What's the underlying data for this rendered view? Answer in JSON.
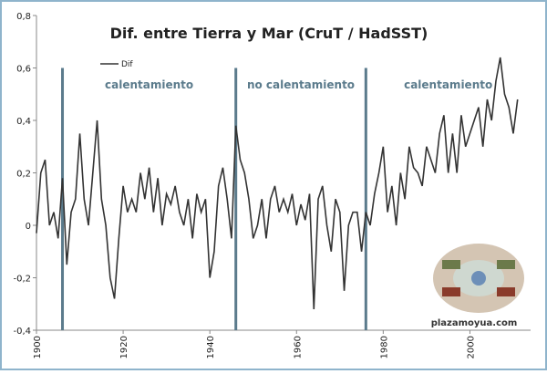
{
  "chart_data": {
    "type": "line",
    "title": "Dif. entre Tierra y Mar (CruT / HadSST)",
    "x": [
      1900,
      1901,
      1902,
      1903,
      1904,
      1905,
      1906,
      1907,
      1908,
      1909,
      1910,
      1911,
      1912,
      1913,
      1914,
      1915,
      1916,
      1917,
      1918,
      1919,
      1920,
      1921,
      1922,
      1923,
      1924,
      1925,
      1926,
      1927,
      1928,
      1929,
      1930,
      1931,
      1932,
      1933,
      1934,
      1935,
      1936,
      1937,
      1938,
      1939,
      1940,
      1941,
      1942,
      1943,
      1944,
      1945,
      1946,
      1947,
      1948,
      1949,
      1950,
      1951,
      1952,
      1953,
      1954,
      1955,
      1956,
      1957,
      1958,
      1959,
      1960,
      1961,
      1962,
      1963,
      1964,
      1965,
      1966,
      1967,
      1968,
      1969,
      1970,
      1971,
      1972,
      1973,
      1974,
      1975,
      1976,
      1977,
      1978,
      1979,
      1980,
      1981,
      1982,
      1983,
      1984,
      1985,
      1986,
      1987,
      1988,
      1989,
      1990,
      1991,
      1992,
      1993,
      1994,
      1995,
      1996,
      1997,
      1998,
      1999,
      2000,
      2001,
      2002,
      2003,
      2004,
      2005,
      2006,
      2007,
      2008,
      2009,
      2010,
      2011
    ],
    "series": [
      {
        "name": "Dif",
        "color": "#333333",
        "values": [
          -0.03,
          0.2,
          0.25,
          0.0,
          0.05,
          -0.05,
          0.18,
          -0.15,
          0.05,
          0.1,
          0.35,
          0.1,
          0.0,
          0.2,
          0.4,
          0.1,
          0.0,
          -0.2,
          -0.28,
          -0.05,
          0.15,
          0.05,
          0.1,
          0.05,
          0.2,
          0.1,
          0.22,
          0.05,
          0.18,
          0.0,
          0.12,
          0.08,
          0.15,
          0.05,
          0.0,
          0.1,
          -0.05,
          0.12,
          0.05,
          0.1,
          -0.2,
          -0.1,
          0.15,
          0.22,
          0.1,
          -0.05,
          0.38,
          0.25,
          0.2,
          0.1,
          -0.05,
          0.0,
          0.1,
          -0.05,
          0.1,
          0.15,
          0.05,
          0.1,
          0.05,
          0.12,
          0.0,
          0.08,
          0.02,
          0.12,
          -0.32,
          0.1,
          0.15,
          0.0,
          -0.1,
          0.1,
          0.05,
          -0.25,
          0.0,
          0.05,
          0.05,
          -0.1,
          0.05,
          0.0,
          0.12,
          0.2,
          0.3,
          0.05,
          0.15,
          0.0,
          0.2,
          0.1,
          0.3,
          0.22,
          0.2,
          0.15,
          0.3,
          0.25,
          0.2,
          0.35,
          0.42,
          0.2,
          0.35,
          0.2,
          0.42,
          0.3,
          0.35,
          0.4,
          0.45,
          0.3,
          0.48,
          0.4,
          0.55,
          0.64,
          0.5,
          0.45,
          0.35,
          0.48
        ]
      }
    ],
    "xlim": [
      1900,
      2014
    ],
    "xticks": [
      1900,
      1920,
      1940,
      1960,
      1980,
      2000
    ],
    "ylim": [
      -0.4,
      0.8
    ],
    "yticks": [
      {
        "value": -0.4,
        "label": "-0,4"
      },
      {
        "value": -0.2,
        "label": "-0,2"
      },
      0,
      {
        "value": 0.2,
        "label": "0,2"
      },
      {
        "value": 0.4,
        "label": "0,4"
      },
      {
        "value": 0.6,
        "label": "0,6"
      },
      {
        "value": 0.8,
        "label": "0,8"
      }
    ],
    "vlines": [
      {
        "x": 1906,
        "label": "calentamiento"
      },
      {
        "x": 1946,
        "label": "no calentamiento"
      },
      {
        "x": 1976,
        "label": "calentamiento"
      }
    ],
    "vline_color": "#5b7b8c",
    "watermark": "plazamoyua.com"
  }
}
